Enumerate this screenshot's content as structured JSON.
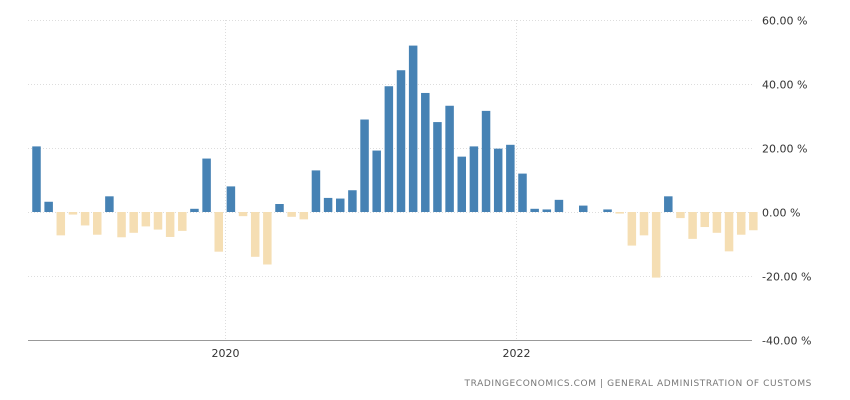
{
  "chart_data": {
    "type": "bar",
    "title": "",
    "xlabel": "",
    "ylabel": "",
    "ylim": [
      -40,
      60
    ],
    "y_ticks": [
      60,
      40,
      20,
      0,
      -20,
      -40
    ],
    "y_tick_labels": [
      "60.00 %",
      "40.00 %",
      "20.00 %",
      "0.00 %",
      "-20.00 %",
      "-40.00 %"
    ],
    "x_tick_labels": [
      {
        "label": "2020",
        "at_index": 15
      },
      {
        "label": "2022",
        "at_index": 39
      }
    ],
    "grid": true,
    "legend": "none",
    "colors": {
      "positive": "#4682b4",
      "negative": "#f5deb3",
      "grid": "#dddddd",
      "axis": "#999999"
    },
    "values": [
      20.5,
      3.2,
      -7.3,
      -0.8,
      -4.2,
      -7.1,
      4.9,
      -7.9,
      -6.5,
      -4.5,
      -5.5,
      -7.8,
      -5.9,
      1.0,
      16.7,
      -12.4,
      8.0,
      -1.3,
      -14.0,
      -16.4,
      2.5,
      -1.5,
      -2.3,
      13.0,
      4.4,
      4.2,
      6.8,
      28.9,
      19.2,
      39.3,
      44.3,
      52.0,
      37.2,
      28.1,
      33.2,
      17.3,
      20.5,
      31.6,
      19.8,
      21.0,
      12.0,
      1.0,
      0.8,
      3.8,
      0.0,
      2.0,
      0.0,
      0.8,
      -0.5,
      -10.5,
      -7.3,
      -20.5,
      4.9,
      -1.9,
      -8.4,
      -4.7,
      -6.5,
      -12.3,
      -7.1,
      -5.7
    ]
  },
  "source": {
    "text": "TRADINGECONOMICS.COM  |  GENERAL ADMINISTRATION OF CUSTOMS"
  }
}
